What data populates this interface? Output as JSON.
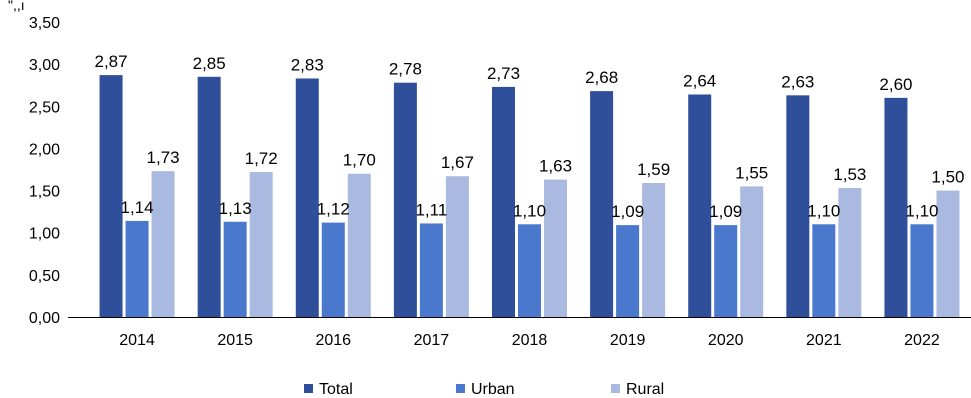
{
  "fragment_text": "\",,ı",
  "chart_data": {
    "type": "bar",
    "title": "",
    "xlabel": "",
    "ylabel": "",
    "ylim": [
      0,
      3.5
    ],
    "yticks": [
      "0,00",
      "0,50",
      "1,00",
      "1,50",
      "2,00",
      "2,50",
      "3,00",
      "3,50"
    ],
    "grid": false,
    "legend_position": "bottom",
    "categories": [
      "2014",
      "2015",
      "2016",
      "2017",
      "2018",
      "2019",
      "2020",
      "2021",
      "2022"
    ],
    "series": [
      {
        "name": "Total",
        "color": "#2f4f9a",
        "values": [
          2.87,
          2.85,
          2.83,
          2.78,
          2.73,
          2.68,
          2.64,
          2.63,
          2.6
        ],
        "labels": [
          "2,87",
          "2,85",
          "2,83",
          "2,78",
          "2,73",
          "2,68",
          "2,64",
          "2,63",
          "2,60"
        ]
      },
      {
        "name": "Urban",
        "color": "#4a78cc",
        "values": [
          1.14,
          1.13,
          1.12,
          1.11,
          1.1,
          1.09,
          1.09,
          1.1,
          1.1
        ],
        "labels": [
          "1,14",
          "1,13",
          "1,12",
          "1,11",
          "1,10",
          "1,09",
          "1,09",
          "1,10",
          "1,10"
        ]
      },
      {
        "name": "Rural",
        "color": "#a9b9df",
        "values": [
          1.73,
          1.72,
          1.7,
          1.67,
          1.63,
          1.59,
          1.55,
          1.53,
          1.5
        ],
        "labels": [
          "1,73",
          "1,72",
          "1,70",
          "1,67",
          "1,63",
          "1,59",
          "1,55",
          "1,53",
          "1,50"
        ]
      }
    ]
  }
}
